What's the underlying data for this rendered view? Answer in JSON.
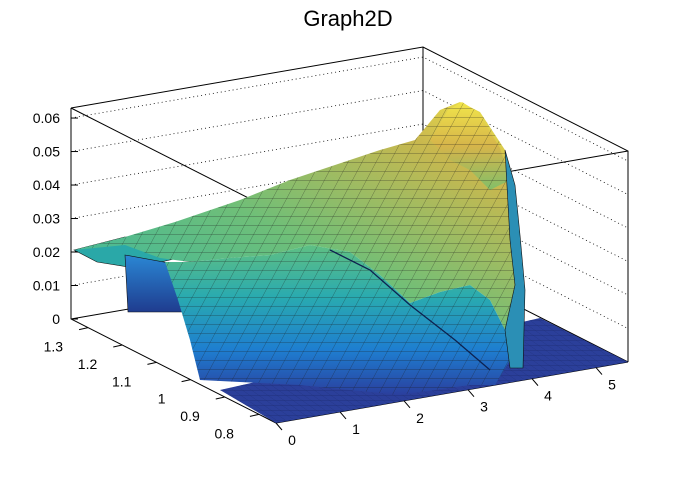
{
  "chart_data": {
    "type": "surface",
    "title": "Graph2D",
    "xlabel": "",
    "ylabel": "",
    "zlabel": "",
    "x_ticks": [
      "0",
      "1",
      "2",
      "3",
      "4",
      "5"
    ],
    "y_ticks": [
      "0.8",
      "0.9",
      "1",
      "1.1",
      "1.2",
      "1.3"
    ],
    "z_ticks": [
      "0",
      "0.01",
      "0.02",
      "0.03",
      "0.04",
      "0.05",
      "0.06"
    ],
    "xlim": [
      0,
      5.5
    ],
    "ylim": [
      0.75,
      1.35
    ],
    "zlim": [
      0,
      0.063
    ],
    "grid": "z-gridlines dotted on back walls",
    "colormap": "viridis-like (dark blue → teal → green → yellow)",
    "surface_shape": [
      {
        "x": 0.0,
        "y": 1.3,
        "z": 0.021
      },
      {
        "x": 2.0,
        "y": 1.3,
        "z": 0.042
      },
      {
        "x": 4.2,
        "y": 1.3,
        "z": 0.06
      },
      {
        "x": 2.5,
        "y": 1.05,
        "z": 0.025
      },
      {
        "x": 3.5,
        "y": 1.0,
        "z": 0.028
      },
      {
        "x": 4.3,
        "y": 1.1,
        "z": 0.042
      },
      {
        "x": 4.4,
        "y": 0.8,
        "z": 0.0
      },
      {
        "x": 1.5,
        "y": 0.8,
        "z": 0.0
      }
    ]
  }
}
